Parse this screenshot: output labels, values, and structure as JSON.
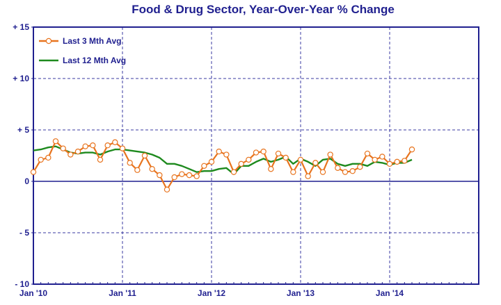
{
  "chart_data": {
    "type": "line",
    "title": "Food & Drug Sector, Year-Over-Year % Change",
    "xlabel": "",
    "ylabel": "",
    "ylim": [
      -10,
      15
    ],
    "xlim": [
      "Jan '10",
      "Dec '14"
    ],
    "y_ticks": [
      15,
      10,
      5,
      0,
      -5,
      -10
    ],
    "y_tick_labels": [
      "+ 15",
      "+ 10",
      "+ 5",
      "0",
      "- 5",
      "- 10"
    ],
    "x_tick_labels": [
      "Jan '10",
      "Jan '11",
      "Jan '12",
      "Jan '13",
      "Jan '14"
    ],
    "grid": true,
    "legend_position": "top-left",
    "series": [
      {
        "name": "Last 3 Mth Avg",
        "color": "#E8741E",
        "marker": "open-circle",
        "values": [
          0.9,
          2.1,
          2.3,
          3.9,
          3.2,
          2.6,
          2.9,
          3.4,
          3.5,
          2.1,
          3.5,
          3.8,
          3.2,
          1.8,
          1.1,
          2.5,
          1.2,
          0.6,
          -0.8,
          0.4,
          0.7,
          0.6,
          0.5,
          1.5,
          1.9,
          2.9,
          2.6,
          0.9,
          1.7,
          2.1,
          2.8,
          2.9,
          1.2,
          2.7,
          2.3,
          0.9,
          2.1,
          0.5,
          1.8,
          0.9,
          2.6,
          1.3,
          0.9,
          1.0,
          1.4,
          2.7,
          2.1,
          2.4,
          1.7,
          1.9,
          2.0,
          3.1
        ]
      },
      {
        "name": "Last 12 Mth Avg",
        "color": "#1E8A1E",
        "marker": "none",
        "values": [
          3.0,
          3.1,
          3.3,
          3.4,
          3.1,
          2.8,
          2.7,
          2.8,
          2.8,
          2.6,
          2.9,
          3.1,
          3.1,
          3.0,
          2.9,
          2.8,
          2.6,
          2.3,
          1.7,
          1.7,
          1.5,
          1.2,
          0.9,
          1.0,
          1.0,
          1.2,
          1.3,
          0.7,
          1.5,
          1.5,
          1.9,
          2.2,
          1.9,
          2.1,
          2.4,
          1.7,
          2.2,
          1.9,
          1.5,
          2.1,
          2.2,
          1.7,
          1.5,
          1.7,
          1.7,
          1.5,
          1.9,
          1.8,
          1.6,
          1.8,
          1.8,
          2.1
        ]
      }
    ]
  }
}
